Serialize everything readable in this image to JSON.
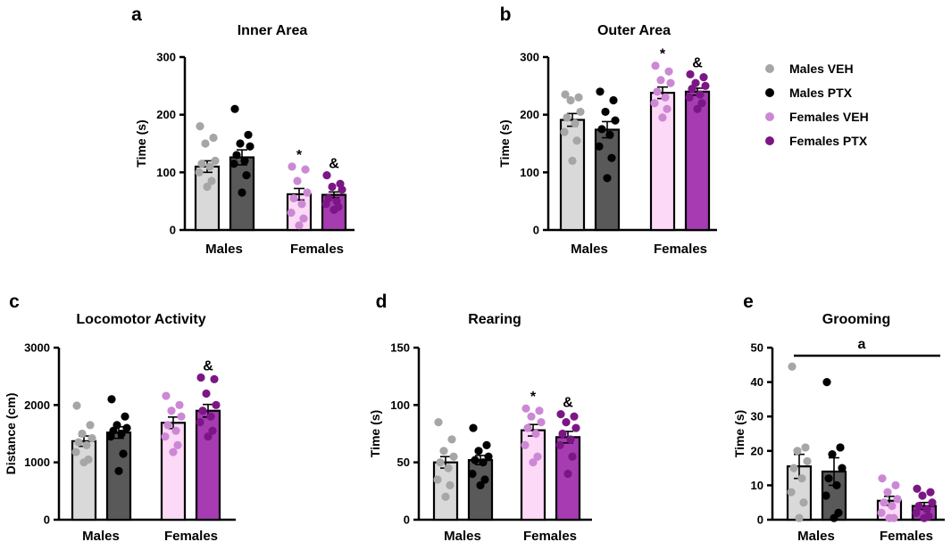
{
  "legend": [
    {
      "label": "Males VEH",
      "dot": "#a6a6a6"
    },
    {
      "label": "Males PTX",
      "dot": "#000000"
    },
    {
      "label": "Females VEH",
      "dot": "#cc88d4"
    },
    {
      "label": "Females PTX",
      "dot": "#7b1785"
    }
  ],
  "groups": [
    {
      "name": "Males VEH",
      "bar": "#d9d9d9",
      "dot": "#a6a6a6"
    },
    {
      "name": "Males PTX",
      "bar": "#595959",
      "dot": "#000000"
    },
    {
      "name": "Females VEH",
      "bar": "#fcd9f6",
      "dot": "#cc88d4"
    },
    {
      "name": "Females PTX",
      "bar": "#a63bb2",
      "dot": "#7b1785"
    }
  ],
  "chart_data": [
    {
      "panel": "a",
      "type": "bar",
      "title": "Inner Area",
      "ylabel": "Time (s)",
      "ylim": [
        0,
        300
      ],
      "yticks": [
        "0",
        "100",
        "200",
        "300"
      ],
      "categories": [
        "Males",
        "Females"
      ],
      "series": [
        {
          "name": "Males VEH",
          "mean": 110,
          "sem": 10,
          "points": [
            180,
            160,
            150,
            120,
            115,
            110,
            100,
            85,
            75
          ]
        },
        {
          "name": "Males PTX",
          "mean": 126,
          "sem": 13,
          "points": [
            210,
            165,
            150,
            145,
            130,
            120,
            115,
            95,
            65
          ]
        },
        {
          "name": "Females VEH",
          "mean": 62,
          "sem": 10,
          "points": [
            110,
            105,
            85,
            65,
            55,
            45,
            30,
            20,
            8
          ]
        },
        {
          "name": "Females PTX",
          "mean": 61,
          "sem": 5,
          "points": [
            95,
            80,
            75,
            70,
            55,
            50,
            45,
            40,
            35
          ]
        }
      ],
      "annotations": [
        "*",
        "&"
      ]
    },
    {
      "panel": "b",
      "type": "bar",
      "title": "Outer Area",
      "ylabel": "Time (s)",
      "ylim": [
        0,
        300
      ],
      "yticks": [
        "0",
        "100",
        "200",
        "300"
      ],
      "categories": [
        "Males",
        "Females"
      ],
      "series": [
        {
          "name": "Males VEH",
          "mean": 191,
          "sem": 11,
          "points": [
            235,
            230,
            225,
            205,
            195,
            185,
            170,
            155,
            120
          ]
        },
        {
          "name": "Males PTX",
          "mean": 174,
          "sem": 14,
          "points": [
            240,
            225,
            205,
            190,
            175,
            165,
            145,
            125,
            90
          ]
        },
        {
          "name": "Females VEH",
          "mean": 238,
          "sem": 10,
          "points": [
            285,
            275,
            260,
            255,
            240,
            230,
            220,
            210,
            195
          ]
        },
        {
          "name": "Females PTX",
          "mean": 240,
          "sem": 6,
          "points": [
            270,
            265,
            255,
            250,
            245,
            235,
            230,
            220,
            210
          ]
        }
      ],
      "annotations": [
        "*",
        "&"
      ]
    },
    {
      "panel": "c",
      "type": "bar",
      "title": "Locomotor Activity",
      "ylabel": "Distance (cm)",
      "ylim": [
        0,
        3000
      ],
      "yticks": [
        "0",
        "1000",
        "2000",
        "3000"
      ],
      "categories": [
        "Males",
        "Females"
      ],
      "series": [
        {
          "name": "Males VEH",
          "mean": 1370,
          "sem": 90,
          "points": [
            1990,
            1650,
            1500,
            1420,
            1350,
            1300,
            1180,
            1050,
            1000
          ]
        },
        {
          "name": "Males PTX",
          "mean": 1520,
          "sem": 100,
          "points": [
            2100,
            1800,
            1650,
            1600,
            1550,
            1500,
            1450,
            1150,
            850
          ]
        },
        {
          "name": "Females VEH",
          "mean": 1690,
          "sem": 100,
          "points": [
            2160,
            2000,
            1900,
            1800,
            1650,
            1550,
            1450,
            1300,
            1180
          ]
        },
        {
          "name": "Females PTX",
          "mean": 1900,
          "sem": 110,
          "points": [
            2480,
            2450,
            2200,
            2000,
            1900,
            1800,
            1700,
            1550,
            1450
          ]
        }
      ],
      "annotations": [
        "",
        "&"
      ]
    },
    {
      "panel": "d",
      "type": "bar",
      "title": "Rearing",
      "ylabel": "Time (s)",
      "ylim": [
        0,
        150
      ],
      "yticks": [
        "0",
        "50",
        "100",
        "150"
      ],
      "categories": [
        "Males",
        "Females"
      ],
      "series": [
        {
          "name": "Males VEH",
          "mean": 50,
          "sem": 5,
          "points": [
            85,
            70,
            60,
            55,
            50,
            45,
            35,
            30,
            20
          ]
        },
        {
          "name": "Males PTX",
          "mean": 52,
          "sem": 4,
          "points": [
            80,
            65,
            60,
            55,
            52,
            50,
            40,
            35,
            30
          ]
        },
        {
          "name": "Females VEH",
          "mean": 78,
          "sem": 5,
          "points": [
            97,
            95,
            90,
            85,
            80,
            75,
            65,
            55,
            50
          ]
        },
        {
          "name": "Females PTX",
          "mean": 72,
          "sem": 5,
          "points": [
            92,
            90,
            85,
            80,
            75,
            70,
            65,
            55,
            40
          ]
        }
      ],
      "annotations": [
        "*",
        "&"
      ]
    },
    {
      "panel": "e",
      "type": "bar",
      "title": "Grooming",
      "ylabel": "Time (s)",
      "ylim": [
        0,
        50
      ],
      "yticks": [
        "0",
        "10",
        "20",
        "30",
        "40",
        "50"
      ],
      "categories": [
        "Males",
        "Females"
      ],
      "series": [
        {
          "name": "Males VEH",
          "mean": 15.5,
          "sem": 3.5,
          "points": [
            44.5,
            21,
            20,
            17,
            15,
            12,
            8,
            5,
            0.5
          ]
        },
        {
          "name": "Males PTX",
          "mean": 14,
          "sem": 4,
          "points": [
            40,
            21,
            19,
            15,
            12,
            10,
            7,
            2,
            0.5
          ]
        },
        {
          "name": "Females VEH",
          "mean": 5.5,
          "sem": 1.3,
          "points": [
            12,
            10,
            8,
            6,
            5,
            4,
            2,
            0.5,
            0.5
          ]
        },
        {
          "name": "Females PTX",
          "mean": 4,
          "sem": 1,
          "points": [
            9,
            8,
            7,
            5,
            4,
            3,
            2,
            1,
            0.5
          ]
        }
      ],
      "annotations": [
        "",
        ""
      ],
      "bracket_label": "a"
    }
  ]
}
